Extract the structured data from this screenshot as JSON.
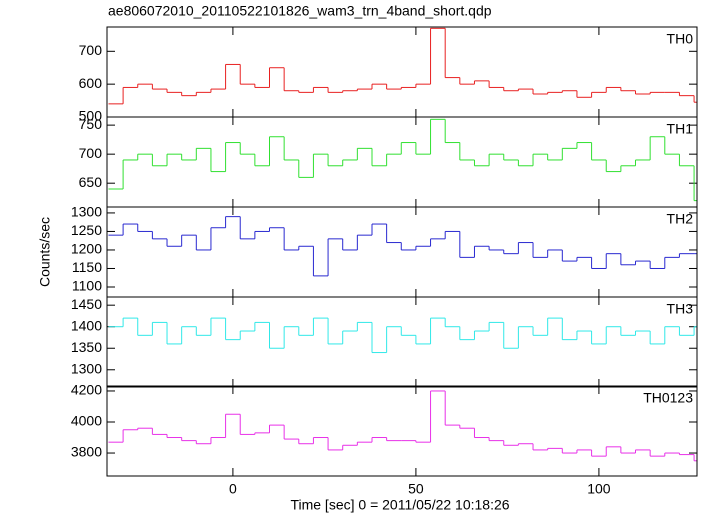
{
  "chart_data": [
    {
      "type": "line",
      "title": "ae806072010_20110522101826_wam3_trn_4band_short.qdp",
      "ylabel": "Counts/sec",
      "x": [
        -32,
        -28,
        -24,
        -20,
        -16,
        -12,
        -8,
        -4,
        0,
        4,
        8,
        12,
        16,
        20,
        24,
        28,
        32,
        36,
        40,
        44,
        48,
        52,
        56,
        60,
        64,
        68,
        72,
        76,
        80,
        84,
        88,
        92,
        96,
        100,
        104,
        108,
        112,
        116,
        120,
        124,
        128
      ],
      "xlim": [
        -34.4,
        126.8
      ],
      "xticks": [
        0,
        50,
        100
      ],
      "ylim": [
        500,
        774
      ],
      "yticks": [
        500,
        600,
        700
      ],
      "series": [
        {
          "name": "TH0",
          "color": "#e82020",
          "values": [
            540,
            590,
            600,
            585,
            575,
            565,
            575,
            585,
            660,
            600,
            590,
            650,
            580,
            575,
            590,
            575,
            580,
            585,
            600,
            585,
            590,
            600,
            770,
            620,
            600,
            610,
            590,
            580,
            585,
            570,
            575,
            580,
            560,
            575,
            590,
            580,
            570,
            575,
            575,
            565,
            545
          ]
        }
      ]
    },
    {
      "type": "line",
      "x": [
        -32,
        -28,
        -24,
        -20,
        -16,
        -12,
        -8,
        -4,
        0,
        4,
        8,
        12,
        16,
        20,
        24,
        28,
        32,
        36,
        40,
        44,
        48,
        52,
        56,
        60,
        64,
        68,
        72,
        76,
        80,
        84,
        88,
        92,
        96,
        100,
        104,
        108,
        112,
        116,
        120,
        124,
        128
      ],
      "xlim": [
        -34.4,
        126.8
      ],
      "xticks": [
        0,
        50,
        100
      ],
      "ylim": [
        609,
        764
      ],
      "yticks": [
        650,
        700,
        750
      ],
      "series": [
        {
          "name": "TH1",
          "color": "#30e030",
          "values": [
            640,
            690,
            700,
            680,
            700,
            690,
            710,
            670,
            720,
            700,
            680,
            730,
            690,
            660,
            700,
            680,
            690,
            710,
            680,
            700,
            720,
            700,
            760,
            720,
            690,
            680,
            700,
            690,
            680,
            700,
            690,
            710,
            720,
            690,
            670,
            680,
            690,
            730,
            700,
            680,
            620
          ]
        }
      ]
    },
    {
      "type": "line",
      "x": [
        -32,
        -28,
        -24,
        -20,
        -16,
        -12,
        -8,
        -4,
        0,
        4,
        8,
        12,
        16,
        20,
        24,
        28,
        32,
        36,
        40,
        44,
        48,
        52,
        56,
        60,
        64,
        68,
        72,
        76,
        80,
        84,
        88,
        92,
        96,
        100,
        104,
        108,
        112,
        116,
        120,
        124,
        128
      ],
      "xlim": [
        -34.4,
        126.8
      ],
      "xticks": [
        0,
        50,
        100
      ],
      "ylim": [
        1073,
        1316
      ],
      "yticks": [
        1100,
        1150,
        1200,
        1250,
        1300
      ],
      "series": [
        {
          "name": "TH2",
          "color": "#2828d0",
          "values": [
            1240,
            1270,
            1250,
            1230,
            1210,
            1240,
            1200,
            1260,
            1290,
            1230,
            1250,
            1260,
            1200,
            1210,
            1130,
            1230,
            1200,
            1240,
            1270,
            1220,
            1200,
            1210,
            1230,
            1250,
            1180,
            1210,
            1200,
            1190,
            1220,
            1180,
            1200,
            1170,
            1180,
            1150,
            1190,
            1160,
            1170,
            1150,
            1180,
            1190,
            1190
          ]
        }
      ]
    },
    {
      "type": "line",
      "x": [
        -32,
        -28,
        -24,
        -20,
        -16,
        -12,
        -8,
        -4,
        0,
        4,
        8,
        12,
        16,
        20,
        24,
        28,
        32,
        36,
        40,
        44,
        48,
        52,
        56,
        60,
        64,
        68,
        72,
        76,
        80,
        84,
        88,
        92,
        96,
        100,
        104,
        108,
        112,
        116,
        120,
        124,
        128
      ],
      "xlim": [
        -34.4,
        126.8
      ],
      "xticks": [
        0,
        50,
        100
      ],
      "ylim": [
        1260,
        1469
      ],
      "yticks": [
        1300,
        1350,
        1400,
        1450
      ],
      "series": [
        {
          "name": "TH3",
          "color": "#30e8e8",
          "values": [
            1400,
            1420,
            1380,
            1410,
            1360,
            1400,
            1380,
            1420,
            1370,
            1390,
            1410,
            1350,
            1400,
            1380,
            1420,
            1360,
            1390,
            1410,
            1340,
            1400,
            1380,
            1360,
            1420,
            1400,
            1370,
            1390,
            1410,
            1350,
            1400,
            1380,
            1420,
            1370,
            1390,
            1360,
            1400,
            1380,
            1390,
            1360,
            1400,
            1380,
            1400
          ]
        }
      ]
    },
    {
      "type": "line",
      "xlabel": "Time [sec] 0 = 2011/05/22 10:18:26",
      "x": [
        -32,
        -28,
        -24,
        -20,
        -16,
        -12,
        -8,
        -4,
        0,
        4,
        8,
        12,
        16,
        20,
        24,
        28,
        32,
        36,
        40,
        44,
        48,
        52,
        56,
        60,
        64,
        68,
        72,
        76,
        80,
        84,
        88,
        92,
        96,
        100,
        104,
        108,
        112,
        116,
        120,
        124,
        128
      ],
      "xlim": [
        -34.4,
        126.8
      ],
      "xticks": [
        0,
        50,
        100
      ],
      "ylim": [
        3652,
        4232
      ],
      "yticks": [
        3800,
        4000,
        4200
      ],
      "series": [
        {
          "name": "TH0123",
          "color": "#e830e8",
          "values": [
            3870,
            3950,
            3960,
            3920,
            3900,
            3880,
            3860,
            3900,
            4050,
            3920,
            3930,
            3980,
            3890,
            3860,
            3900,
            3820,
            3850,
            3870,
            3900,
            3880,
            3880,
            3870,
            4200,
            3980,
            3960,
            3900,
            3880,
            3850,
            3860,
            3820,
            3830,
            3800,
            3820,
            3780,
            3840,
            3800,
            3820,
            3780,
            3800,
            3790,
            3750
          ]
        }
      ]
    }
  ]
}
